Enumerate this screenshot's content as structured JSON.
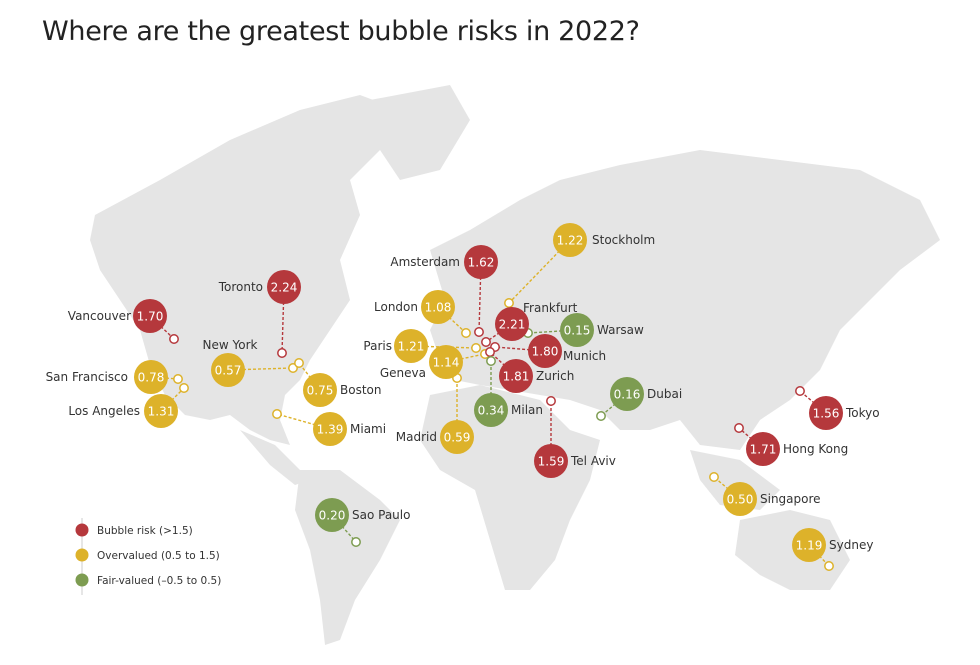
{
  "title": "Where are the greatest bubble risks in 2022?",
  "colors": {
    "bubble": "#b5383c",
    "overvalued": "#ddb22a",
    "fair": "#7d9c51",
    "land": "#e5e5e5"
  },
  "legend": [
    {
      "key": "bubble",
      "label": "Bubble risk (>1.5)"
    },
    {
      "key": "overvalued",
      "label": "Overvalued (0.5 to 1.5)"
    },
    {
      "key": "fair",
      "label": "Fair-valued (–0.5 to 0.5)"
    }
  ],
  "cities": [
    {
      "name": "Vancouver",
      "value": "1.70",
      "category": "bubble"
    },
    {
      "name": "Toronto",
      "value": "2.24",
      "category": "bubble"
    },
    {
      "name": "New York",
      "value": "0.57",
      "category": "overvalued"
    },
    {
      "name": "Boston",
      "value": "0.75",
      "category": "overvalued"
    },
    {
      "name": "San Francisco",
      "value": "0.78",
      "category": "overvalued"
    },
    {
      "name": "Los Angeles",
      "value": "1.31",
      "category": "overvalued"
    },
    {
      "name": "Miami",
      "value": "1.39",
      "category": "overvalued"
    },
    {
      "name": "Sao Paulo",
      "value": "0.20",
      "category": "fair"
    },
    {
      "name": "Amsterdam",
      "value": "1.62",
      "category": "bubble"
    },
    {
      "name": "Stockholm",
      "value": "1.22",
      "category": "overvalued"
    },
    {
      "name": "London",
      "value": "1.08",
      "category": "overvalued"
    },
    {
      "name": "Frankfurt",
      "value": "2.21",
      "category": "bubble"
    },
    {
      "name": "Warsaw",
      "value": "0.15",
      "category": "fair"
    },
    {
      "name": "Paris",
      "value": "1.21",
      "category": "overvalued"
    },
    {
      "name": "Munich",
      "value": "1.80",
      "category": "bubble"
    },
    {
      "name": "Geneva",
      "value": "1.14",
      "category": "overvalued"
    },
    {
      "name": "Zurich",
      "value": "1.81",
      "category": "bubble"
    },
    {
      "name": "Milan",
      "value": "0.34",
      "category": "fair"
    },
    {
      "name": "Madrid",
      "value": "0.59",
      "category": "overvalued"
    },
    {
      "name": "Tel Aviv",
      "value": "1.59",
      "category": "bubble"
    },
    {
      "name": "Dubai",
      "value": "0.16",
      "category": "fair"
    },
    {
      "name": "Tokyo",
      "value": "1.56",
      "category": "bubble"
    },
    {
      "name": "Hong Kong",
      "value": "1.71",
      "category": "bubble"
    },
    {
      "name": "Singapore",
      "value": "0.50",
      "category": "overvalued"
    },
    {
      "name": "Sydney",
      "value": "1.19",
      "category": "overvalued"
    }
  ]
}
